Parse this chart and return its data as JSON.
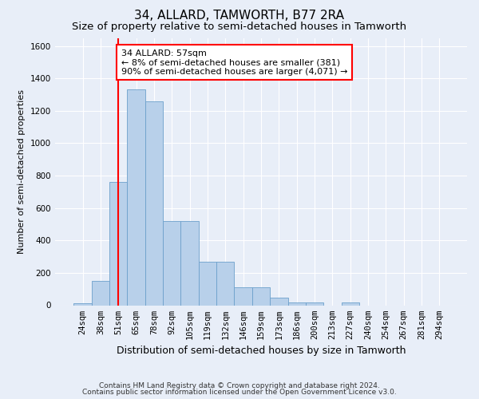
{
  "title": "34, ALLARD, TAMWORTH, B77 2RA",
  "subtitle": "Size of property relative to semi-detached houses in Tamworth",
  "xlabel": "Distribution of semi-detached houses by size in Tamworth",
  "ylabel": "Number of semi-detached properties",
  "footer1": "Contains HM Land Registry data © Crown copyright and database right 2024.",
  "footer2": "Contains public sector information licensed under the Open Government Licence v3.0.",
  "categories": [
    "24sqm",
    "38sqm",
    "51sqm",
    "65sqm",
    "78sqm",
    "92sqm",
    "105sqm",
    "119sqm",
    "132sqm",
    "146sqm",
    "159sqm",
    "173sqm",
    "186sqm",
    "200sqm",
    "213sqm",
    "227sqm",
    "240sqm",
    "254sqm",
    "267sqm",
    "281sqm",
    "294sqm"
  ],
  "values": [
    10,
    150,
    760,
    1330,
    1260,
    520,
    520,
    270,
    270,
    110,
    110,
    45,
    18,
    18,
    0,
    15,
    0,
    0,
    0,
    0,
    0
  ],
  "bar_color": "#b8d0ea",
  "bar_edge_color": "#6ca0cc",
  "vline_x_index": 2.0,
  "vline_color": "red",
  "annotation_text": "34 ALLARD: 57sqm\n← 8% of semi-detached houses are smaller (381)\n90% of semi-detached houses are larger (4,071) →",
  "annotation_box_color": "white",
  "annotation_box_edge_color": "red",
  "ylim": [
    0,
    1650
  ],
  "yticks": [
    0,
    200,
    400,
    600,
    800,
    1000,
    1200,
    1400,
    1600
  ],
  "background_color": "#e8eef8",
  "plot_bg_color": "#e8eef8",
  "grid_color": "white",
  "title_fontsize": 11,
  "subtitle_fontsize": 9.5,
  "xlabel_fontsize": 9,
  "ylabel_fontsize": 8,
  "tick_fontsize": 7.5,
  "annotation_fontsize": 8
}
